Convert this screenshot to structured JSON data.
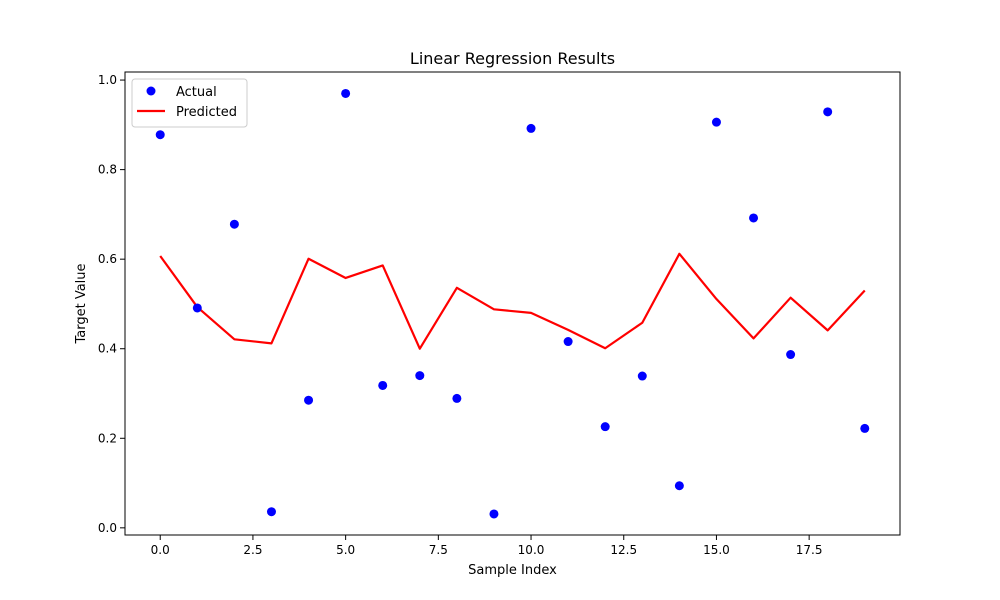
{
  "chart_data": {
    "type": "scatter",
    "title": "Linear Regression Results",
    "xlabel": "Sample Index",
    "ylabel": "Target Value",
    "xlim": [
      -0.95,
      19.95
    ],
    "ylim": [
      -0.016,
      1.018
    ],
    "x_ticks": [
      0.0,
      2.5,
      5.0,
      7.5,
      10.0,
      12.5,
      15.0,
      17.5
    ],
    "x_tick_labels": [
      "0.0",
      "2.5",
      "5.0",
      "7.5",
      "10.0",
      "12.5",
      "15.0",
      "17.5"
    ],
    "y_ticks": [
      0.0,
      0.2,
      0.4,
      0.6,
      0.8,
      1.0
    ],
    "y_tick_labels": [
      "0.0",
      "0.2",
      "0.4",
      "0.6",
      "0.8",
      "1.0"
    ],
    "grid": false,
    "legend_position": "upper-left",
    "x": [
      0,
      1,
      2,
      3,
      4,
      5,
      6,
      7,
      8,
      9,
      10,
      11,
      12,
      13,
      14,
      15,
      16,
      17,
      18,
      19
    ],
    "series": [
      {
        "name": "Actual",
        "kind": "scatter",
        "color": "#0000ff",
        "values": [
          0.878,
          0.491,
          0.678,
          0.036,
          0.285,
          0.97,
          0.318,
          0.34,
          0.289,
          0.031,
          0.892,
          0.416,
          0.226,
          0.339,
          0.094,
          0.906,
          0.692,
          0.387,
          0.929,
          0.222
        ]
      },
      {
        "name": "Predicted",
        "kind": "line",
        "color": "#ff0000",
        "values": [
          0.607,
          0.493,
          0.421,
          0.412,
          0.601,
          0.558,
          0.586,
          0.4,
          0.536,
          0.488,
          0.48,
          0.442,
          0.401,
          0.458,
          0.612,
          0.511,
          0.423,
          0.514,
          0.441,
          0.53
        ]
      }
    ]
  }
}
